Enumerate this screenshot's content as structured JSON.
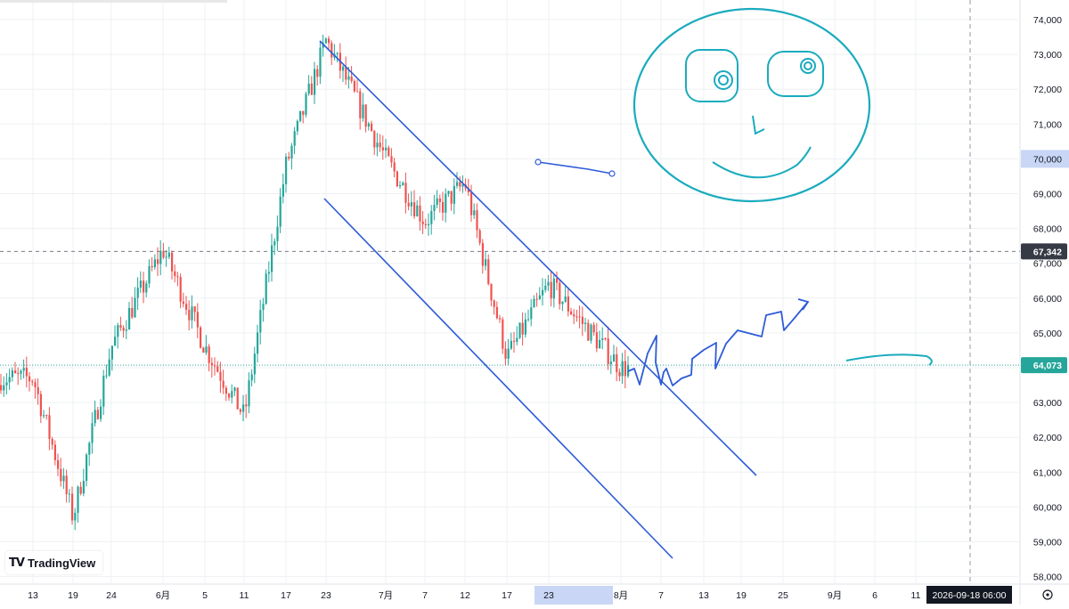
{
  "brand": {
    "name": "TradingView"
  },
  "crosshair": {
    "time_label": "2026-09-18  06:00"
  },
  "price_labels": {
    "last_price": "64,073",
    "hline_price": "67,342",
    "crosshair_price": "70,000"
  },
  "colors": {
    "up": "#26a69a",
    "down": "#ef5350",
    "trendline": "#2e5bd8",
    "drawing": "#1aabbe",
    "last_price_bg": "#26a69a",
    "hline_bg": "#363a45",
    "grid": "#eef0f3"
  },
  "chart_data": {
    "type": "candlestick",
    "y_axis_ticks": [
      "74,000",
      "73,000",
      "72,000",
      "71,000",
      "70,000",
      "69,000",
      "68,000",
      "67,000",
      "66,000",
      "65,000",
      "64,000",
      "63,000",
      "62,000",
      "61,000",
      "60,000",
      "59,000",
      "58,000"
    ],
    "x_axis_ticks": [
      "13",
      "19",
      "24",
      "6月",
      "5",
      "11",
      "17",
      "23",
      "7月",
      "7",
      "12",
      "17",
      "23",
      "8月",
      "7",
      "13",
      "19",
      "25",
      "9月",
      "6",
      "11"
    ],
    "ylim": [
      58000,
      74000
    ],
    "last_price": 64073,
    "horizontal_line": 67342,
    "anchors": [
      {
        "x": "13",
        "y": 63700
      },
      {
        "x": "19",
        "y": 59700
      },
      {
        "x": "24",
        "y": 64600
      },
      {
        "x": "6月",
        "y": 67400
      },
      {
        "x": "5",
        "y": 64600
      },
      {
        "x": "11",
        "y": 62600
      },
      {
        "x": "17",
        "y": 69800
      },
      {
        "x": "23",
        "y": 73400
      },
      {
        "x": "7月",
        "y": 70000
      },
      {
        "x": "7",
        "y": 68200
      },
      {
        "x": "12",
        "y": 69300
      },
      {
        "x": "17",
        "y": 64300
      },
      {
        "x": "23",
        "y": 66400
      },
      {
        "x": "8月",
        "y": 64000
      }
    ],
    "channel": {
      "upper": [
        {
          "x": "23",
          "y": 73500
        },
        {
          "x": "19",
          "y": 61000
        }
      ],
      "lower": [
        {
          "x": "23",
          "y": 68900
        },
        {
          "x": "8月",
          "y": 58800
        }
      ]
    }
  }
}
